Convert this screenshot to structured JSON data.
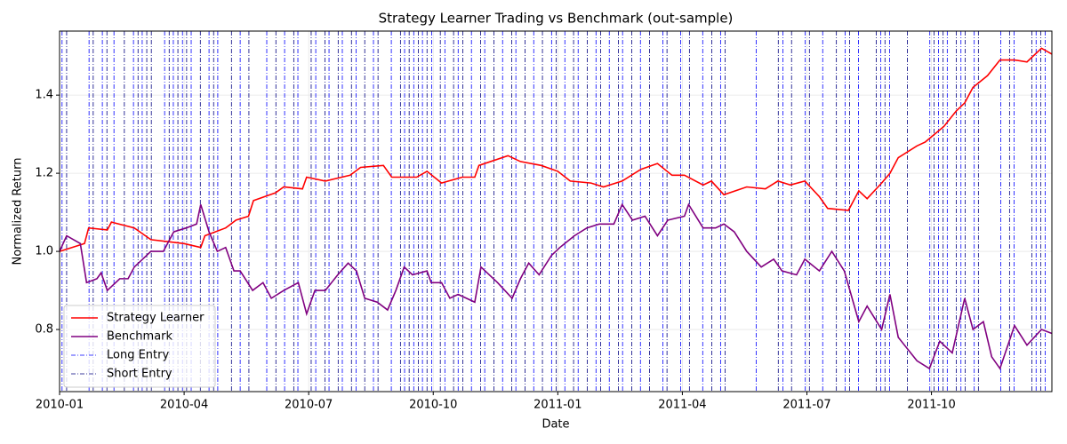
{
  "chart_data": {
    "type": "line",
    "title": "Strategy Learner Trading vs Benchmark (out-sample)",
    "xlabel": "Date",
    "ylabel": "Normalized Return",
    "xlim": [
      0,
      23.9
    ],
    "xticks": [
      {
        "value": 0,
        "label": "2010-01"
      },
      {
        "value": 3,
        "label": "2010-04"
      },
      {
        "value": 6,
        "label": "2010-07"
      },
      {
        "value": 9,
        "label": "2010-10"
      },
      {
        "value": 12,
        "label": "2011-01"
      },
      {
        "value": 15,
        "label": "2011-04"
      },
      {
        "value": 18,
        "label": "2011-07"
      },
      {
        "value": 21,
        "label": "2011-10"
      }
    ],
    "ylim": [
      0.641,
      1.564
    ],
    "yticks": [
      0.8,
      {
        "value": 1,
        "label": "1.0"
      },
      1.2,
      1.4
    ],
    "grid": true,
    "legend": "lower left",
    "series": [
      {
        "name": "Strategy Learner",
        "color": "#ff0000",
        "x": [
          0,
          0.6,
          0.7,
          1.15,
          1.25,
          1.8,
          2.2,
          2.6,
          3.0,
          3.4,
          3.5,
          4.0,
          4.25,
          4.55,
          4.67,
          5.2,
          5.4,
          5.85,
          5.95,
          6.4,
          7.0,
          7.25,
          7.8,
          8.0,
          8.6,
          8.85,
          9.2,
          9.7,
          10.0,
          10.1,
          10.8,
          11.1,
          11.6,
          12.0,
          12.3,
          12.8,
          13.1,
          13.55,
          14.0,
          14.4,
          14.75,
          15.05,
          15.5,
          15.7,
          16.0,
          16.55,
          17.0,
          17.3,
          17.6,
          17.95,
          18.3,
          18.5,
          19.0,
          19.25,
          19.45,
          19.8,
          20.0,
          20.2,
          20.65,
          20.85,
          21.3,
          21.6,
          21.8,
          22.0,
          22.35,
          22.65,
          23.0,
          23.3,
          23.65,
          23.9
        ],
        "values": [
          1.0,
          1.02,
          1.06,
          1.055,
          1.075,
          1.06,
          1.03,
          1.025,
          1.02,
          1.01,
          1.04,
          1.06,
          1.08,
          1.09,
          1.13,
          1.15,
          1.165,
          1.16,
          1.19,
          1.18,
          1.195,
          1.215,
          1.22,
          1.19,
          1.19,
          1.205,
          1.175,
          1.19,
          1.19,
          1.22,
          1.245,
          1.23,
          1.22,
          1.205,
          1.18,
          1.175,
          1.165,
          1.18,
          1.21,
          1.225,
          1.195,
          1.195,
          1.17,
          1.18,
          1.145,
          1.165,
          1.16,
          1.18,
          1.17,
          1.18,
          1.14,
          1.11,
          1.105,
          1.155,
          1.135,
          1.175,
          1.2,
          1.24,
          1.27,
          1.28,
          1.32,
          1.36,
          1.38,
          1.42,
          1.45,
          1.49,
          1.49,
          1.485,
          1.52,
          1.505
        ]
      },
      {
        "name": "Benchmark",
        "color": "#800080",
        "x": [
          0,
          0.17,
          0.5,
          0.65,
          0.9,
          1.0,
          1.15,
          1.45,
          1.65,
          1.8,
          2.2,
          2.5,
          2.75,
          3.05,
          3.3,
          3.4,
          3.6,
          3.8,
          4.0,
          4.2,
          4.35,
          4.65,
          4.9,
          5.1,
          5.4,
          5.75,
          5.95,
          6.15,
          6.4,
          6.7,
          6.95,
          7.15,
          7.35,
          7.65,
          7.9,
          8.1,
          8.3,
          8.5,
          8.85,
          8.95,
          9.2,
          9.4,
          9.6,
          10.0,
          10.15,
          10.55,
          10.9,
          11.1,
          11.3,
          11.55,
          11.85,
          12.05,
          12.4,
          12.7,
          13.0,
          13.35,
          13.55,
          13.8,
          14.1,
          14.4,
          14.65,
          15.05,
          15.15,
          15.5,
          15.8,
          16.0,
          16.25,
          16.55,
          16.9,
          17.2,
          17.4,
          17.75,
          17.95,
          18.3,
          18.6,
          18.9,
          19.25,
          19.45,
          19.8,
          20.0,
          20.2,
          20.65,
          20.95,
          21.2,
          21.5,
          21.8,
          22.0,
          22.25,
          22.45,
          22.65,
          23.0,
          23.3,
          23.65,
          23.9
        ],
        "values": [
          1.0,
          1.04,
          1.02,
          0.92,
          0.93,
          0.945,
          0.9,
          0.93,
          0.93,
          0.96,
          1.0,
          1.0,
          1.05,
          1.06,
          1.07,
          1.12,
          1.05,
          1.0,
          1.01,
          0.95,
          0.95,
          0.9,
          0.92,
          0.88,
          0.9,
          0.92,
          0.84,
          0.9,
          0.9,
          0.94,
          0.97,
          0.95,
          0.88,
          0.87,
          0.85,
          0.9,
          0.96,
          0.94,
          0.95,
          0.92,
          0.92,
          0.88,
          0.89,
          0.87,
          0.96,
          0.92,
          0.88,
          0.93,
          0.97,
          0.94,
          0.99,
          1.01,
          1.04,
          1.06,
          1.07,
          1.07,
          1.12,
          1.08,
          1.09,
          1.04,
          1.08,
          1.09,
          1.12,
          1.06,
          1.06,
          1.07,
          1.05,
          1.0,
          0.96,
          0.98,
          0.95,
          0.94,
          0.98,
          0.95,
          1.0,
          0.95,
          0.82,
          0.86,
          0.8,
          0.89,
          0.78,
          0.72,
          0.7,
          0.77,
          0.74,
          0.88,
          0.8,
          0.82,
          0.73,
          0.7,
          0.81,
          0.76,
          0.8,
          0.79
        ]
      }
    ],
    "entries": [
      {
        "name": "Long Entry",
        "color": "#0000ff",
        "x": [
          0.06,
          0.71,
          1.03,
          1.31,
          1.78,
          1.99,
          2.53,
          2.74,
          2.96,
          3.17,
          3.6,
          3.81,
          4.35,
          4.99,
          5.42,
          5.74,
          6.17,
          6.49,
          6.81,
          7.14,
          7.56,
          7.99,
          8.31,
          8.53,
          8.74,
          8.96,
          9.28,
          9.6,
          9.92,
          10.24,
          10.67,
          10.99,
          11.42,
          11.85,
          12.17,
          12.49,
          12.92,
          13.24,
          13.56,
          13.99,
          14.53,
          14.96,
          15.49,
          15.92,
          16.78,
          17.42,
          17.96,
          18.38,
          18.92,
          19.24,
          19.78,
          19.99,
          20.96,
          21.17,
          21.38,
          21.71,
          22.03,
          22.67,
          22.99,
          23.52,
          23.74
        ]
      },
      {
        "name": "Short Entry",
        "color": "#000080",
        "x": [
          0.17,
          0.81,
          1.14,
          1.56,
          1.89,
          2.1,
          2.21,
          2.64,
          2.85,
          3.06,
          3.39,
          3.71,
          4.14,
          4.56,
          5.21,
          5.64,
          6.06,
          6.39,
          6.71,
          7.03,
          7.35,
          7.67,
          8.21,
          8.42,
          8.64,
          8.85,
          9.17,
          9.49,
          9.71,
          10.14,
          10.46,
          10.89,
          11.21,
          11.63,
          11.96,
          12.38,
          12.71,
          13.03,
          13.46,
          13.78,
          14.21,
          14.63,
          15.17,
          15.71,
          16.03,
          17.31,
          17.63,
          18.06,
          18.71,
          19.03,
          19.67,
          19.88,
          20.42,
          21.06,
          21.28,
          21.6,
          21.81,
          22.13,
          22.88,
          23.42,
          23.63
        ]
      }
    ]
  }
}
